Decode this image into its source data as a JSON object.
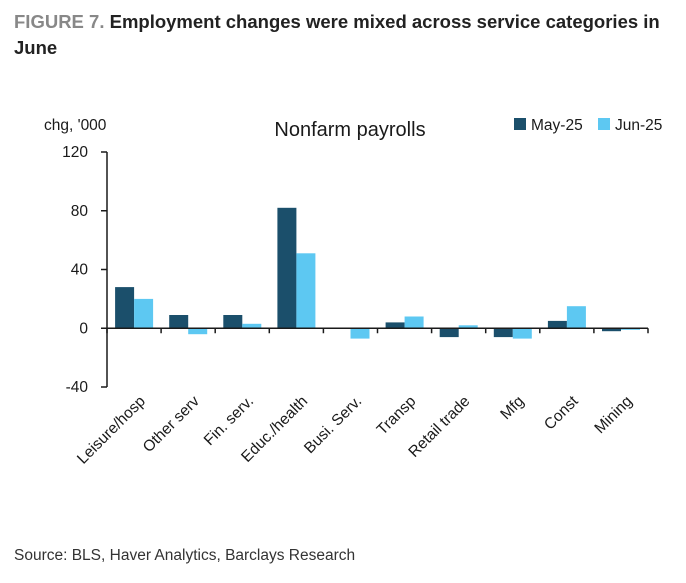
{
  "figure": {
    "label": "FIGURE 7.",
    "title": "Employment changes were mixed across service categories in June"
  },
  "source": "Source: BLS, Haver Analytics, Barclays Research",
  "colors": {
    "may": "#1b4f6b",
    "jun": "#5dc8f2",
    "axis": "#1a1a1a"
  },
  "chart_data": {
    "type": "bar",
    "title": "Nonfarm payrolls",
    "ylabel": "chg, '000",
    "xlabel": "",
    "ylim": [
      -40,
      120
    ],
    "yticks": [
      120,
      80,
      40,
      0,
      -40
    ],
    "legend_position": "top-right",
    "categories": [
      "Leisure/hosp",
      "Other serv",
      "Fin. serv.",
      "Educ./health",
      "Busi. Serv.",
      "Transp",
      "Retail trade",
      "Mfg",
      "Const",
      "Mining"
    ],
    "series": [
      {
        "name": "May-25",
        "values": [
          28,
          9,
          9,
          82,
          0,
          4,
          -6,
          -6,
          5,
          -2
        ]
      },
      {
        "name": "Jun-25",
        "values": [
          20,
          -4,
          3,
          51,
          -7,
          8,
          2,
          -7,
          15,
          -1
        ]
      }
    ]
  }
}
